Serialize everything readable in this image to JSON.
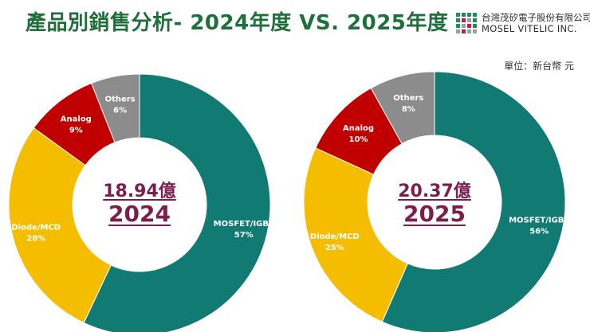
{
  "header": {
    "title": "產品別銷售分析- 2024年度 VS. 2025年度",
    "unit_label": "單位：新台幣 元"
  },
  "logo": {
    "name_zh": "台灣茂矽電子股份有限公司",
    "name_en": "MOSEL VITELIC INC."
  },
  "colors": {
    "mosfet": "#117a72",
    "diode": "#f5bd00",
    "analog": "#c00000",
    "others": "#8c8c8c",
    "title": "#1f6f3b",
    "center": "#7a1e4e"
  },
  "chart_data": [
    {
      "type": "pie",
      "title": "2024",
      "total_label": "18.94億",
      "year_label": "2024",
      "slices": [
        {
          "name": "MOSFET/IGBT",
          "value": 57,
          "label": "57%"
        },
        {
          "name": "Diode/MCD",
          "value": 28,
          "label": "28%"
        },
        {
          "name": "Analog",
          "value": 9,
          "label": "9%"
        },
        {
          "name": "Others",
          "value": 6,
          "label": "6%"
        }
      ]
    },
    {
      "type": "pie",
      "title": "2025",
      "total_label": "20.37億",
      "year_label": "2025",
      "slices": [
        {
          "name": "MOSFET/IGBT",
          "value": 56,
          "label": "56%"
        },
        {
          "name": "Diode/MCD",
          "value": 25,
          "label": "25%"
        },
        {
          "name": "Analog",
          "value": 10,
          "label": "10%"
        },
        {
          "name": "Others",
          "value": 8,
          "label": "8%"
        }
      ]
    }
  ]
}
